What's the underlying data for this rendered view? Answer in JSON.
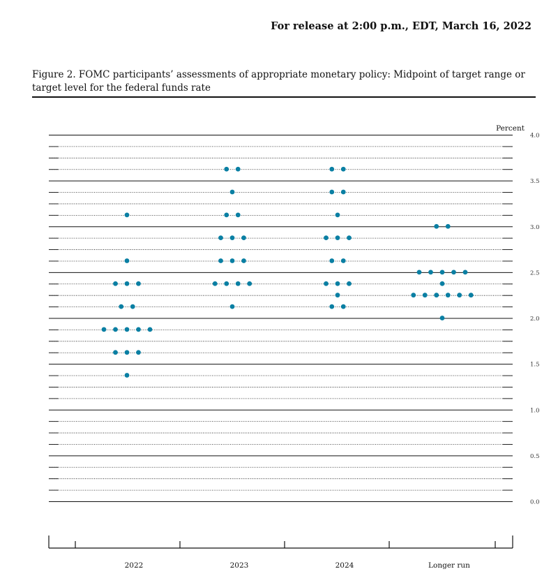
{
  "header": {
    "release": "For release at 2:00 p.m., EDT, March 16, 2022"
  },
  "figure": {
    "title": "Figure 2.  FOMC participants’ assessments of appropriate monetary policy: Midpoint of target range or target level for the federal funds rate"
  },
  "chart_data": {
    "type": "scatter",
    "subtype": "dot-plot",
    "title": "Figure 2.  FOMC participants’ assessments of appropriate monetary policy: Midpoint of target range or target level for the federal funds rate",
    "ylabel": "Percent",
    "ylim": [
      0,
      4.0
    ],
    "y_ticks": [
      "0.0",
      "0.5",
      "1.0",
      "1.5",
      "2.0",
      "2.5",
      "3.0",
      "3.5",
      "4.0"
    ],
    "gridlines": {
      "solid_every": 0.5,
      "dotted_every": 0.125
    },
    "categories": [
      "2022",
      "2023",
      "2024",
      "Longer run"
    ],
    "dot_color": "#0a7fa3",
    "series": [
      {
        "name": "2022",
        "points": [
          {
            "y": 3.125,
            "count": 1
          },
          {
            "y": 2.625,
            "count": 1
          },
          {
            "y": 2.375,
            "count": 3
          },
          {
            "y": 2.125,
            "count": 2
          },
          {
            "y": 1.875,
            "count": 5
          },
          {
            "y": 1.625,
            "count": 3
          },
          {
            "y": 1.375,
            "count": 1
          }
        ]
      },
      {
        "name": "2023",
        "points": [
          {
            "y": 3.625,
            "count": 2
          },
          {
            "y": 3.375,
            "count": 1
          },
          {
            "y": 3.125,
            "count": 2
          },
          {
            "y": 2.875,
            "count": 3
          },
          {
            "y": 2.625,
            "count": 3
          },
          {
            "y": 2.375,
            "count": 4
          },
          {
            "y": 2.125,
            "count": 1
          }
        ]
      },
      {
        "name": "2024",
        "points": [
          {
            "y": 3.625,
            "count": 2
          },
          {
            "y": 3.375,
            "count": 2
          },
          {
            "y": 3.125,
            "count": 1
          },
          {
            "y": 2.875,
            "count": 3
          },
          {
            "y": 2.625,
            "count": 2
          },
          {
            "y": 2.375,
            "count": 3
          },
          {
            "y": 2.25,
            "count": 1
          },
          {
            "y": 2.125,
            "count": 2
          }
        ]
      },
      {
        "name": "Longer run",
        "points": [
          {
            "y": 3.0,
            "count": 2
          },
          {
            "y": 2.5,
            "count": 5
          },
          {
            "y": 2.375,
            "count": 1
          },
          {
            "y": 2.25,
            "count": 6
          },
          {
            "y": 2.0,
            "count": 1
          }
        ]
      }
    ]
  }
}
